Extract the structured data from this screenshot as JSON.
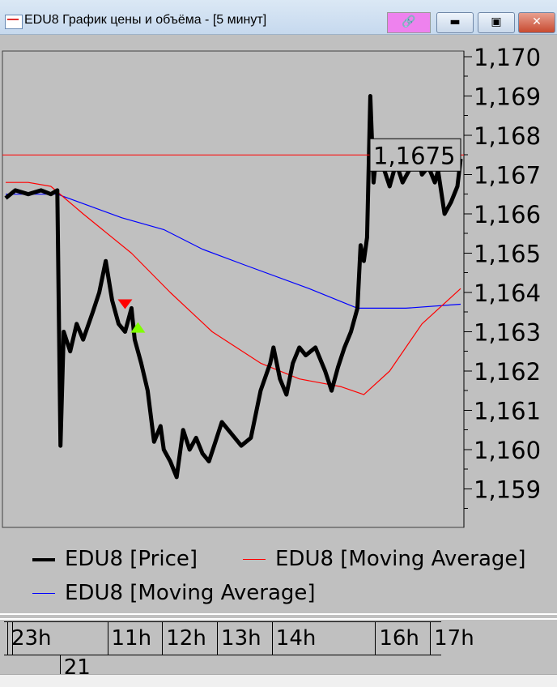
{
  "window": {
    "title": "EDU8 График цены и объёма - [5 минут]",
    "buttons": {
      "link_icon": "link-icon",
      "minimize": "minimize-icon",
      "maximize": "maximize-icon",
      "close": "close-icon"
    },
    "link_button_color": "#ee82ee"
  },
  "chart_data": {
    "type": "line",
    "title": "",
    "xlabel": "",
    "ylabel": "",
    "x_unit": "5-minute bar index",
    "ylim": [
      1.1584,
      1.1707
    ],
    "yticks": [
      1.17,
      1.169,
      1.168,
      1.167,
      1.166,
      1.165,
      1.164,
      1.163,
      1.162,
      1.161,
      1.16,
      1.159
    ],
    "ytick_labels": [
      "1,170",
      "1,169",
      "1,168",
      "1,167",
      "1,166",
      "1,165",
      "1,164",
      "1,163",
      "1,162",
      "1,161",
      "1,160",
      "1,159"
    ],
    "current_value": 1.1675,
    "current_value_label": "1,1675",
    "current_line_color": "#ff0000",
    "xlim": [
      0,
      143
    ],
    "time_labels": [
      {
        "label": "23h",
        "bar": 4
      },
      {
        "label": "11h",
        "bar": 35
      },
      {
        "label": "12h",
        "bar": 52
      },
      {
        "label": "13h",
        "bar": 69
      },
      {
        "label": "14h",
        "bar": 86
      },
      {
        "label": "16h",
        "bar": 118
      },
      {
        "label": "17h",
        "bar": 135
      }
    ],
    "day_labels": [
      {
        "label": "21",
        "bar": 19
      }
    ],
    "series": [
      {
        "name": "EDU8 [Price]",
        "color": "#000000",
        "x": [
          1,
          4,
          8,
          12,
          15,
          17,
          18,
          19,
          21,
          23,
          25,
          28,
          30,
          32,
          34,
          36,
          38,
          40,
          41,
          43,
          45,
          47,
          49,
          50,
          52,
          54,
          56,
          58,
          60,
          62,
          64,
          66,
          68,
          71,
          74,
          77,
          80,
          83,
          84,
          86,
          88,
          90,
          92,
          94,
          97,
          100,
          102,
          104,
          106,
          108,
          110,
          111,
          112,
          113,
          114,
          115,
          116,
          118,
          120,
          122,
          124,
          126,
          128,
          130,
          132,
          134,
          135,
          137,
          139,
          141,
          142
        ],
        "y": [
          1.1664,
          1.1666,
          1.1665,
          1.1666,
          1.1665,
          1.1666,
          1.1601,
          1.163,
          1.1625,
          1.1632,
          1.1628,
          1.1635,
          1.164,
          1.1648,
          1.1638,
          1.1632,
          1.163,
          1.1636,
          1.1628,
          1.1622,
          1.1615,
          1.1602,
          1.1606,
          1.16,
          1.1597,
          1.1593,
          1.1605,
          1.16,
          1.1603,
          1.1599,
          1.1597,
          1.1602,
          1.1607,
          1.1604,
          1.1601,
          1.1603,
          1.1615,
          1.1622,
          1.1626,
          1.1618,
          1.1614,
          1.1622,
          1.1626,
          1.1624,
          1.1626,
          1.162,
          1.1615,
          1.1621,
          1.1626,
          1.163,
          1.1636,
          1.1652,
          1.1648,
          1.1654,
          1.169,
          1.1668,
          1.1676,
          1.1672,
          1.1667,
          1.1673,
          1.1668,
          1.1671,
          1.1678,
          1.167,
          1.1672,
          1.1668,
          1.1671,
          1.166,
          1.1663,
          1.1667,
          1.1674
        ]
      },
      {
        "name": "EDU8 [Moving Average]",
        "color": "#ff0000",
        "x": [
          1,
          8,
          15,
          25,
          40,
          52,
          65,
          80,
          92,
          105,
          112,
          120,
          130,
          142
        ],
        "y": [
          1.1668,
          1.1668,
          1.1667,
          1.166,
          1.165,
          1.164,
          1.163,
          1.1622,
          1.1618,
          1.1616,
          1.1614,
          1.162,
          1.1632,
          1.1641
        ]
      },
      {
        "name": "EDU8 [Moving Average]",
        "color": "#0000ff",
        "x": [
          1,
          17,
          37,
          50,
          62,
          75,
          95,
          110,
          118,
          125,
          142
        ],
        "y": [
          1.1665,
          1.1665,
          1.1659,
          1.1656,
          1.1651,
          1.1647,
          1.1641,
          1.1636,
          1.1636,
          1.1636,
          1.1637
        ]
      }
    ],
    "signals": [
      {
        "type": "sell",
        "bar": 38,
        "y": 1.1637,
        "color": "#ff0000"
      },
      {
        "type": "buy",
        "bar": 42,
        "y": 1.1631,
        "color": "#80ff00"
      },
      {
        "type": "sell",
        "bar": 128,
        "y": 1.1676,
        "color": "#ff0000"
      },
      {
        "type": "buy",
        "bar": 135,
        "y": 1.16725,
        "color": "#80ff00"
      }
    ],
    "grid": false,
    "legend_placement": "bottom"
  },
  "legend": {
    "items": [
      {
        "label": "EDU8 [Price]",
        "color": "#000000"
      },
      {
        "label": "EDU8 [Moving Average]",
        "color": "#ff0000"
      },
      {
        "label": "EDU8 [Moving Average]",
        "color": "#0000ff"
      }
    ]
  }
}
